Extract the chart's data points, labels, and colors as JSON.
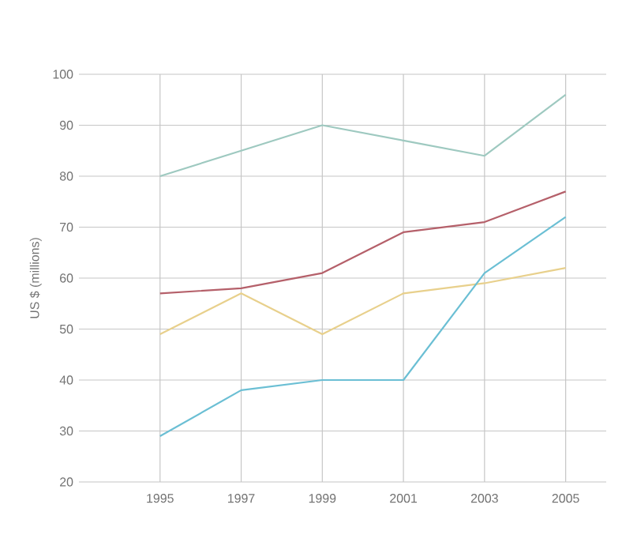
{
  "chart_data": {
    "type": "line",
    "ylabel": "US $ (millions)",
    "x": [
      1995,
      1997,
      1999,
      2001,
      2003,
      2005
    ],
    "series": [
      {
        "color": "#9ec9c0",
        "values": [
          80,
          85,
          90,
          87,
          84,
          96
        ]
      },
      {
        "color": "#b5606a",
        "values": [
          57,
          58,
          61,
          69,
          71,
          77
        ]
      },
      {
        "color": "#e8d08c",
        "values": [
          49,
          57,
          49,
          57,
          59,
          62
        ]
      },
      {
        "color": "#6bbfd4",
        "values": [
          29,
          38,
          40,
          40,
          61,
          72
        ]
      }
    ],
    "xlim": [
      1993,
      2006
    ],
    "ylim": [
      20,
      100
    ],
    "xticks": [
      1995,
      1997,
      1999,
      2001,
      2003,
      2005
    ],
    "yticks": [
      20,
      30,
      40,
      50,
      60,
      70,
      80,
      90,
      100
    ],
    "grid": true,
    "marker": "none",
    "line_style": "solid"
  }
}
